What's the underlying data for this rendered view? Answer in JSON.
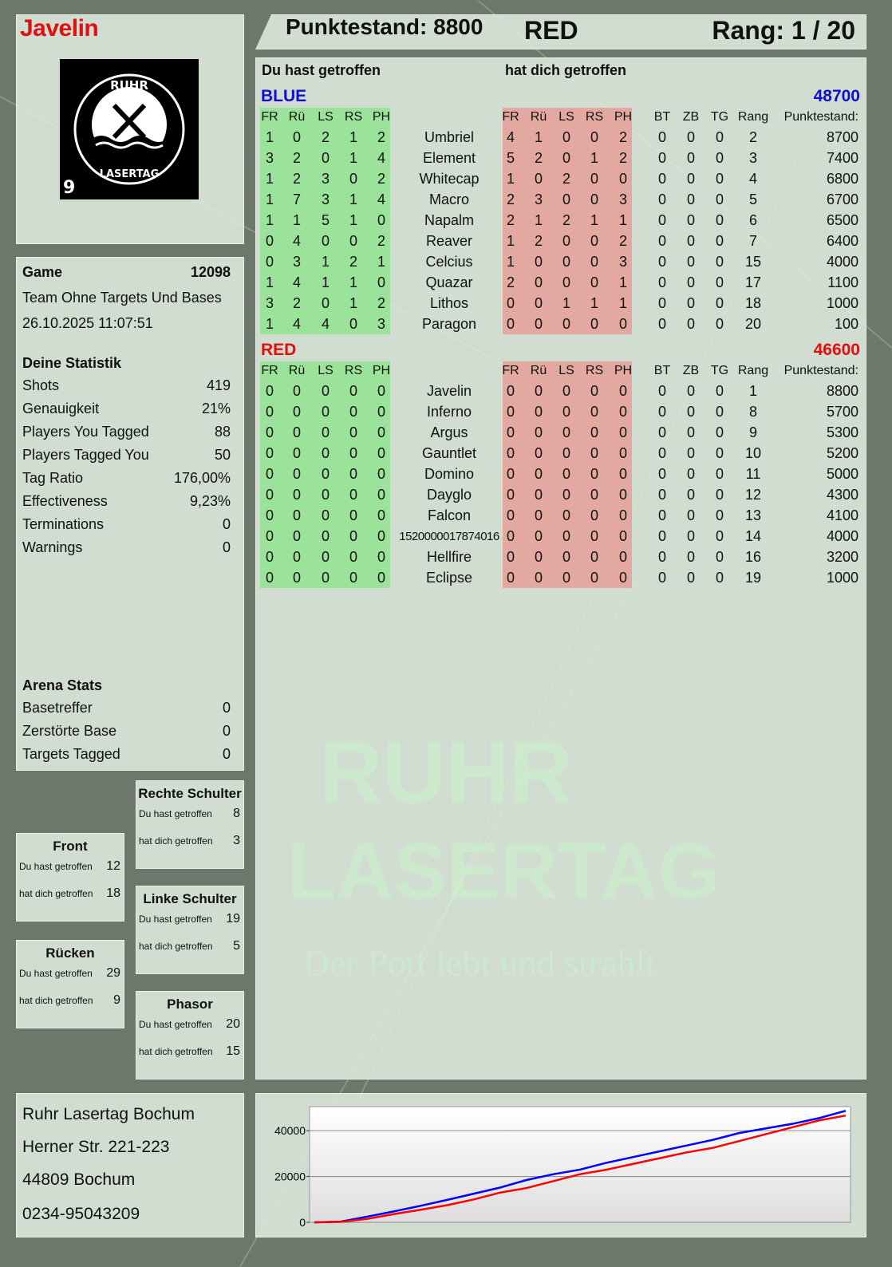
{
  "player": {
    "name": "Javelin",
    "logo_text": "RUHR LASERTAG",
    "logo_number": "9"
  },
  "header": {
    "score": "Punktestand: 8800",
    "team": "RED",
    "rank": "Rang: 1 / 20"
  },
  "game": {
    "label": "Game",
    "id": "12098",
    "mode": "Team Ohne Targets Und Bases",
    "datetime": "26.10.2025 11:07:51"
  },
  "stats": {
    "title": "Deine Statistik",
    "rows": [
      [
        "Shots",
        "419"
      ],
      [
        "Genauigkeit",
        "21%"
      ],
      [
        "Players You Tagged",
        "88"
      ],
      [
        "Players Tagged You",
        "50"
      ],
      [
        "Tag Ratio",
        "176,00%"
      ],
      [
        "Effectiveness",
        "9,23%"
      ],
      [
        "Terminations",
        "0"
      ],
      [
        "Warnings",
        "0"
      ]
    ]
  },
  "arena": {
    "title": "Arena Stats",
    "rows": [
      [
        "Basetreffer",
        "0"
      ],
      [
        "Zerstörte Base",
        "0"
      ],
      [
        "Targets Tagged",
        "0"
      ]
    ]
  },
  "zones": [
    {
      "title": "Rechte Schulter",
      "hit": "8",
      "got": "3"
    },
    {
      "title": "Front",
      "hit": "12",
      "got": "18"
    },
    {
      "title": "Linke Schulter",
      "hit": "19",
      "got": "5"
    },
    {
      "title": "Rücken",
      "hit": "29",
      "got": "9"
    },
    {
      "title": "Phasor",
      "hit": "20",
      "got": "15"
    }
  ],
  "zone_labels": {
    "hit": "Du hast getroffen",
    "got": "hat dich getroffen"
  },
  "table": {
    "you_hit": "Du hast getroffen",
    "hit_you": "hat dich getroffen",
    "cols_left": [
      "FR",
      "Rü",
      "LS",
      "RS",
      "PH"
    ],
    "cols_right": [
      "FR",
      "Rü",
      "LS",
      "RS",
      "PH"
    ],
    "cols_extra": [
      "BT",
      "ZB",
      "TG",
      "Rang",
      "Punktestand:"
    ],
    "teams": [
      {
        "name": "BLUE",
        "total": "48700",
        "color": "#1010d0",
        "players": [
          [
            "1",
            "0",
            "2",
            "1",
            "2",
            "Umbriel",
            "4",
            "1",
            "0",
            "0",
            "2",
            "0",
            "0",
            "0",
            "2",
            "8700"
          ],
          [
            "3",
            "2",
            "0",
            "1",
            "4",
            "Element",
            "5",
            "2",
            "0",
            "1",
            "2",
            "0",
            "0",
            "0",
            "3",
            "7400"
          ],
          [
            "1",
            "2",
            "3",
            "0",
            "2",
            "Whitecap",
            "1",
            "0",
            "2",
            "0",
            "0",
            "0",
            "0",
            "0",
            "4",
            "6800"
          ],
          [
            "1",
            "7",
            "3",
            "1",
            "4",
            "Macro",
            "2",
            "3",
            "0",
            "0",
            "3",
            "0",
            "0",
            "0",
            "5",
            "6700"
          ],
          [
            "1",
            "1",
            "5",
            "1",
            "0",
            "Napalm",
            "2",
            "1",
            "2",
            "1",
            "1",
            "0",
            "0",
            "0",
            "6",
            "6500"
          ],
          [
            "0",
            "4",
            "0",
            "0",
            "2",
            "Reaver",
            "1",
            "2",
            "0",
            "0",
            "2",
            "0",
            "0",
            "0",
            "7",
            "6400"
          ],
          [
            "0",
            "3",
            "1",
            "2",
            "1",
            "Celcius",
            "1",
            "0",
            "0",
            "0",
            "3",
            "0",
            "0",
            "0",
            "15",
            "4000"
          ],
          [
            "1",
            "4",
            "1",
            "1",
            "0",
            "Quazar",
            "2",
            "0",
            "0",
            "0",
            "1",
            "0",
            "0",
            "0",
            "17",
            "1100"
          ],
          [
            "3",
            "2",
            "0",
            "1",
            "2",
            "Lithos",
            "0",
            "0",
            "1",
            "1",
            "1",
            "0",
            "0",
            "0",
            "18",
            "1000"
          ],
          [
            "1",
            "4",
            "4",
            "0",
            "3",
            "Paragon",
            "0",
            "0",
            "0",
            "0",
            "0",
            "0",
            "0",
            "0",
            "20",
            "100"
          ]
        ]
      },
      {
        "name": "RED",
        "total": "46600",
        "color": "#e01010",
        "players": [
          [
            "0",
            "0",
            "0",
            "0",
            "0",
            "Javelin",
            "0",
            "0",
            "0",
            "0",
            "0",
            "0",
            "0",
            "0",
            "1",
            "8800"
          ],
          [
            "0",
            "0",
            "0",
            "0",
            "0",
            "Inferno",
            "0",
            "0",
            "0",
            "0",
            "0",
            "0",
            "0",
            "0",
            "8",
            "5700"
          ],
          [
            "0",
            "0",
            "0",
            "0",
            "0",
            "Argus",
            "0",
            "0",
            "0",
            "0",
            "0",
            "0",
            "0",
            "0",
            "9",
            "5300"
          ],
          [
            "0",
            "0",
            "0",
            "0",
            "0",
            "Gauntlet",
            "0",
            "0",
            "0",
            "0",
            "0",
            "0",
            "0",
            "0",
            "10",
            "5200"
          ],
          [
            "0",
            "0",
            "0",
            "0",
            "0",
            "Domino",
            "0",
            "0",
            "0",
            "0",
            "0",
            "0",
            "0",
            "0",
            "11",
            "5000"
          ],
          [
            "0",
            "0",
            "0",
            "0",
            "0",
            "Dayglo",
            "0",
            "0",
            "0",
            "0",
            "0",
            "0",
            "0",
            "0",
            "12",
            "4300"
          ],
          [
            "0",
            "0",
            "0",
            "0",
            "0",
            "Falcon",
            "0",
            "0",
            "0",
            "0",
            "0",
            "0",
            "0",
            "0",
            "13",
            "4100"
          ],
          [
            "0",
            "0",
            "0",
            "0",
            "0",
            "1520000017874016",
            "0",
            "0",
            "0",
            "0",
            "0",
            "0",
            "0",
            "0",
            "14",
            "4000"
          ],
          [
            "0",
            "0",
            "0",
            "0",
            "0",
            "Hellfire",
            "0",
            "0",
            "0",
            "0",
            "0",
            "0",
            "0",
            "0",
            "16",
            "3200"
          ],
          [
            "0",
            "0",
            "0",
            "0",
            "0",
            "Eclipse",
            "0",
            "0",
            "0",
            "0",
            "0",
            "0",
            "0",
            "0",
            "19",
            "1000"
          ]
        ]
      }
    ]
  },
  "address": [
    "Ruhr Lasertag Bochum",
    "Herner Str. 221-223",
    "44809 Bochum",
    "0234-95043209"
  ],
  "watermark": {
    "line1": "RUHR",
    "line2": "LASERTAG",
    "slogan": "Der Pott lebt und strahlt"
  },
  "colors": {
    "green_block": "#9be39b",
    "red_block": "#e3a9a0",
    "blue": "#1010d0",
    "red": "#e01010"
  },
  "chart_data": {
    "type": "line",
    "ylim": [
      0,
      50500
    ],
    "yticks": [
      "0",
      "20000",
      "40000"
    ],
    "grid": true,
    "series": [
      {
        "color": "#0000ff",
        "values": [
          0,
          300,
          2500,
          4800,
          7200,
          9800,
          12500,
          15200,
          18500,
          21000,
          23000,
          26000,
          28500,
          31000,
          33500,
          36000,
          39000,
          41000,
          43000,
          45500,
          48700
        ]
      },
      {
        "color": "#ff0000",
        "values": [
          0,
          200,
          1500,
          3600,
          5500,
          7500,
          10000,
          13000,
          15000,
          18000,
          21000,
          23000,
          25500,
          28000,
          30500,
          32500,
          35500,
          38500,
          41500,
          44500,
          46600
        ]
      }
    ]
  }
}
